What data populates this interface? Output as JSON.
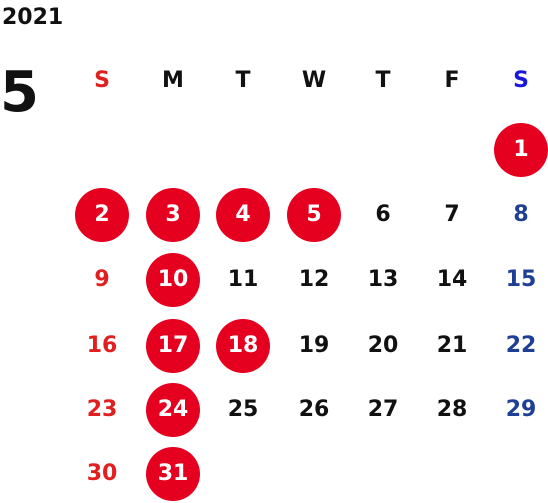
{
  "calendar": {
    "year": "2021",
    "month": "5",
    "colors": {
      "sunday": "#e02020",
      "saturday_header": "#1a1ad6",
      "saturday": "#1f3f95",
      "weekday": "#111111",
      "highlight": "#e60020",
      "highlight_text": "#ffffff"
    },
    "weekdays": [
      {
        "label": "S",
        "kind": "sunday"
      },
      {
        "label": "M",
        "kind": "weekday"
      },
      {
        "label": "T",
        "kind": "weekday"
      },
      {
        "label": "W",
        "kind": "weekday"
      },
      {
        "label": "T",
        "kind": "weekday"
      },
      {
        "label": "F",
        "kind": "weekday"
      },
      {
        "label": "S",
        "kind": "saturday"
      }
    ],
    "first_weekday_index": 6,
    "days_in_month": 31,
    "highlighted_days": [
      1,
      2,
      3,
      4,
      5,
      10,
      17,
      18,
      24,
      31
    ]
  }
}
